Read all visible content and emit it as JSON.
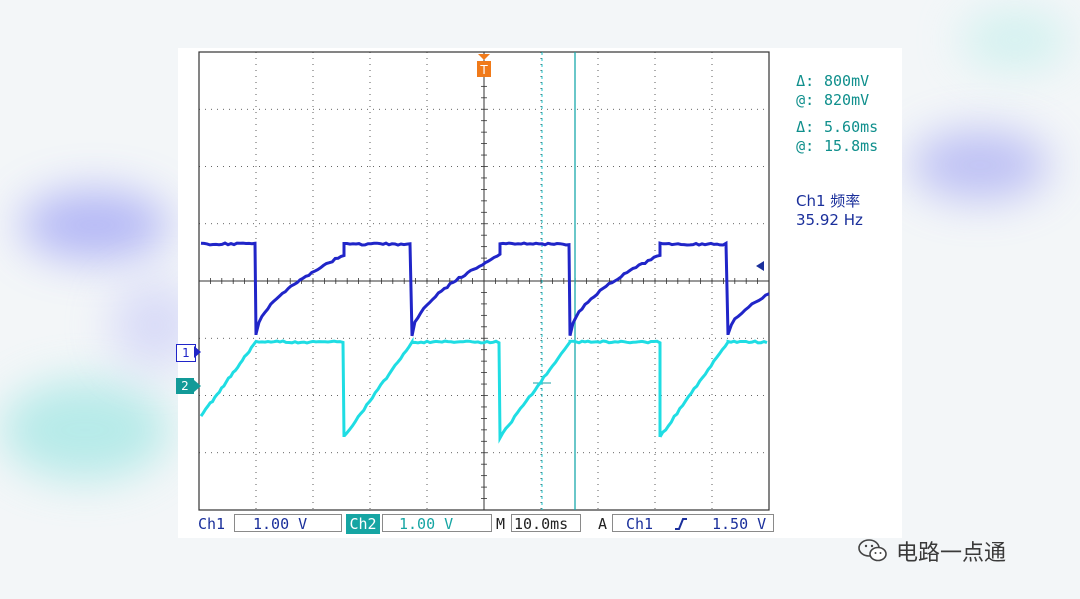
{
  "colors": {
    "ch1": "#2025c8",
    "ch2": "#1fdde3",
    "grid": "#333333",
    "readout": "#0f8f8c",
    "trigger": "#f07a1a"
  },
  "cursor_readouts": {
    "v_delta_symbol": "Δ:",
    "v_delta": "800mV",
    "v_at_symbol": "@:",
    "v_at": "820mV",
    "t_delta_symbol": "Δ:",
    "t_delta": "5.60ms",
    "t_at_symbol": "@:",
    "t_at": "15.8ms"
  },
  "measurement": {
    "label": "Ch1 频率",
    "value": "35.92 Hz"
  },
  "status_bar": {
    "ch1_label": "Ch1",
    "ch1_scale": "1.00 V",
    "ch2_label": "Ch2",
    "ch2_scale": "1.00 V",
    "timebase_label": "M",
    "timebase": "10.0ms",
    "trigger_mode": "A",
    "trigger_source": "Ch1",
    "trigger_slope_icon": "rising-edge-icon",
    "trigger_level": "1.50 V"
  },
  "markers": {
    "ch1": "1",
    "ch2": "2",
    "trigger": "T"
  },
  "watermark": {
    "icon": "wechat-icon",
    "text": "电路一点通"
  }
}
